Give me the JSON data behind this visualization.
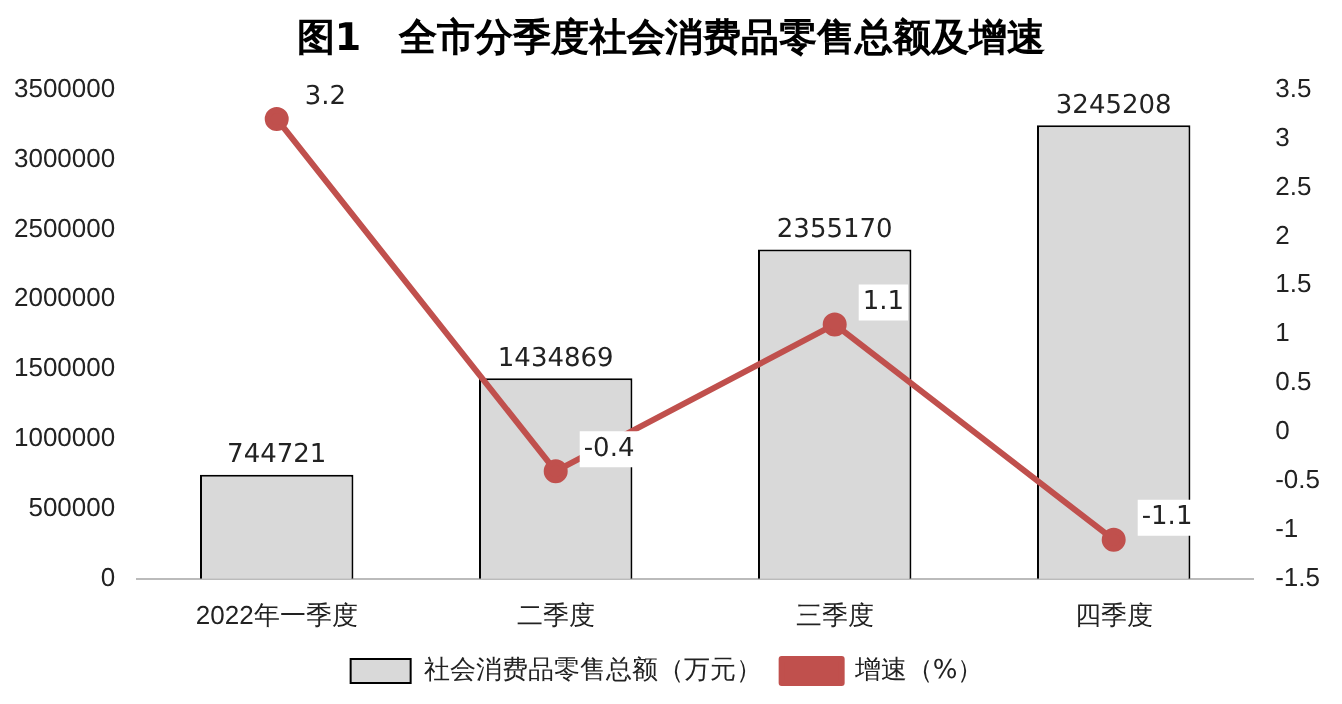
{
  "chart_data": {
    "type": "bar",
    "title": "图1　全市分季度社会消费品零售总额及增速",
    "categories": [
      "2022年一季度",
      "二季度",
      "三季度",
      "四季度"
    ],
    "series": [
      {
        "name": "社会消费品零售总额（万元）",
        "color": "#d9d9d9",
        "values": [
          744721,
          1434869,
          2355170,
          3245208
        ]
      },
      {
        "name": "增速（%）",
        "type": "line",
        "axis": "y2",
        "color": "#c0504d",
        "values": [
          3.2,
          -0.4,
          1.1,
          -1.1
        ]
      }
    ],
    "ylim": [
      0,
      3500000
    ],
    "yticks": [
      0,
      500000,
      1000000,
      1500000,
      2000000,
      2500000,
      3000000,
      3500000
    ],
    "y2lim": [
      -1.5,
      3.5
    ],
    "y2ticks": [
      -1.5,
      -1,
      -0.5,
      0,
      0.5,
      1,
      1.5,
      2,
      2.5,
      3,
      3.5
    ],
    "data_labels": true,
    "legend": "bottom",
    "marker": "circle",
    "grid": false
  }
}
